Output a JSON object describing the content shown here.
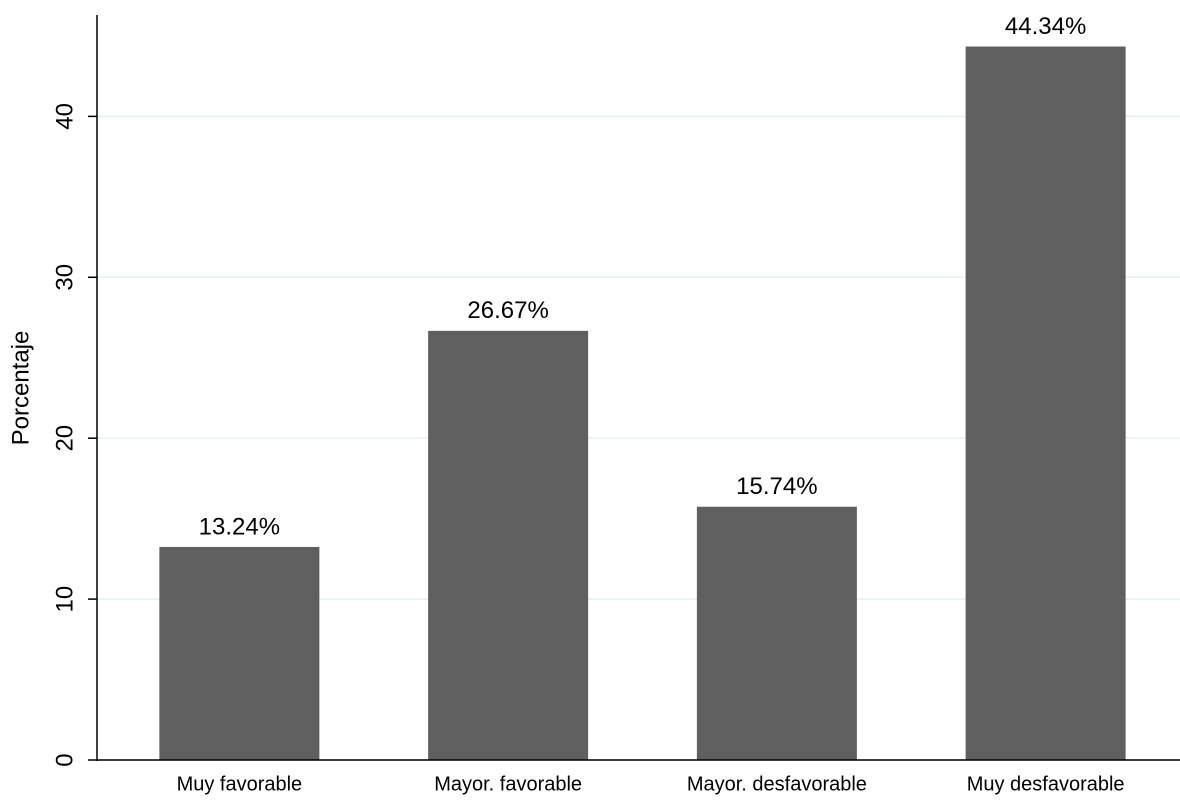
{
  "chart_data": {
    "type": "bar",
    "y_label": "Porcentaje",
    "categories": [
      "Muy favorable",
      "Mayor. favorable",
      "Mayor. desfavorable",
      "Muy desfavorable"
    ],
    "values": [
      13.24,
      26.67,
      15.74,
      44.34
    ],
    "value_labels": [
      "13.24%",
      "26.67%",
      "15.74%",
      "44.34%"
    ],
    "color": "#5f5f5f",
    "ylim": [
      0,
      46.3
    ],
    "yticks": [
      0,
      10,
      20,
      30,
      40
    ],
    "grid": true
  }
}
